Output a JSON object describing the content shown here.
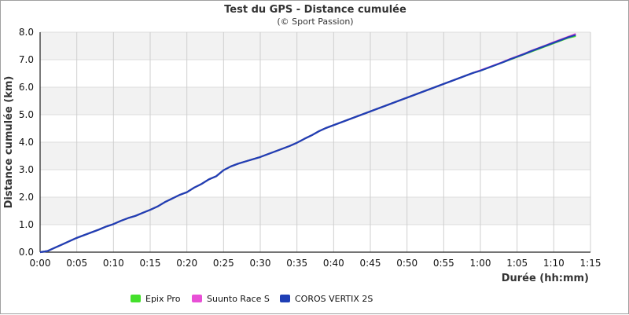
{
  "chart_data": {
    "type": "line",
    "title": "Test du GPS - Distance cumulée",
    "subtitle": "(© Sport Passion)",
    "xlabel": "Durée (hh:mm)",
    "ylabel": "Distance cumulée (km)",
    "x_unit": "minutes",
    "xlim": [
      0,
      75
    ],
    "ylim": [
      0,
      8
    ],
    "x_tick_labels": [
      "0:00",
      "0:05",
      "0:10",
      "0:15",
      "0:20",
      "0:25",
      "0:30",
      "0:35",
      "0:40",
      "0:45",
      "0:50",
      "0:55",
      "1:00",
      "1:05",
      "1:10",
      "1:15"
    ],
    "y_tick_labels": [
      "0.0",
      "1.0",
      "2.0",
      "3.0",
      "4.0",
      "5.0",
      "6.0",
      "7.0",
      "8.0"
    ],
    "grid": true,
    "legend_position": "bottom",
    "x": [
      0,
      1,
      2,
      3,
      4,
      5,
      6,
      7,
      8,
      9,
      10,
      11,
      12,
      13,
      14,
      15,
      16,
      17,
      18,
      19,
      20,
      21,
      22,
      23,
      24,
      25,
      26,
      27,
      28,
      29,
      30,
      31,
      32,
      33,
      34,
      35,
      36,
      37,
      38,
      39,
      40,
      41,
      42,
      43,
      44,
      45,
      46,
      47,
      48,
      49,
      50,
      51,
      52,
      53,
      54,
      55,
      56,
      57,
      58,
      59,
      60,
      61,
      62,
      63,
      64,
      65,
      66,
      67,
      68,
      69,
      70,
      71,
      72,
      73
    ],
    "series": [
      {
        "name": "Epix Pro",
        "color": "#44e02c",
        "values": [
          0.0,
          0.04,
          0.16,
          0.28,
          0.4,
          0.52,
          0.62,
          0.72,
          0.82,
          0.93,
          1.02,
          1.14,
          1.24,
          1.32,
          1.43,
          1.54,
          1.66,
          1.82,
          1.95,
          2.08,
          2.18,
          2.35,
          2.48,
          2.65,
          2.76,
          2.98,
          3.12,
          3.22,
          3.3,
          3.38,
          3.46,
          3.56,
          3.66,
          3.76,
          3.86,
          3.98,
          4.12,
          4.25,
          4.4,
          4.52,
          4.62,
          4.72,
          4.82,
          4.92,
          5.02,
          5.12,
          5.22,
          5.32,
          5.42,
          5.52,
          5.62,
          5.72,
          5.82,
          5.92,
          6.02,
          6.12,
          6.22,
          6.32,
          6.42,
          6.52,
          6.6,
          6.7,
          6.8,
          6.9,
          7.0,
          7.1,
          7.2,
          7.3,
          7.4,
          7.5,
          7.6,
          7.7,
          7.8,
          7.86
        ]
      },
      {
        "name": "Suunto Race S",
        "color": "#e84fd6",
        "values": [
          0.0,
          0.04,
          0.16,
          0.28,
          0.4,
          0.52,
          0.62,
          0.72,
          0.82,
          0.93,
          1.02,
          1.14,
          1.24,
          1.32,
          1.43,
          1.54,
          1.66,
          1.82,
          1.95,
          2.08,
          2.18,
          2.35,
          2.48,
          2.65,
          2.76,
          2.98,
          3.12,
          3.22,
          3.3,
          3.38,
          3.46,
          3.56,
          3.66,
          3.76,
          3.86,
          3.98,
          4.12,
          4.25,
          4.4,
          4.52,
          4.62,
          4.72,
          4.82,
          4.92,
          5.02,
          5.12,
          5.22,
          5.32,
          5.42,
          5.52,
          5.62,
          5.72,
          5.82,
          5.92,
          6.02,
          6.12,
          6.22,
          6.32,
          6.42,
          6.52,
          6.61,
          6.71,
          6.81,
          6.91,
          7.02,
          7.12,
          7.22,
          7.33,
          7.43,
          7.53,
          7.64,
          7.74,
          7.84,
          7.94
        ]
      },
      {
        "name": "COROS VERTIX 2S",
        "color": "#1f3fb5",
        "values": [
          0.0,
          0.04,
          0.16,
          0.28,
          0.4,
          0.52,
          0.62,
          0.72,
          0.82,
          0.93,
          1.02,
          1.14,
          1.24,
          1.32,
          1.43,
          1.54,
          1.66,
          1.82,
          1.95,
          2.08,
          2.18,
          2.35,
          2.48,
          2.65,
          2.76,
          2.98,
          3.12,
          3.22,
          3.3,
          3.38,
          3.46,
          3.56,
          3.66,
          3.76,
          3.86,
          3.98,
          4.12,
          4.25,
          4.4,
          4.52,
          4.62,
          4.72,
          4.82,
          4.92,
          5.02,
          5.12,
          5.22,
          5.32,
          5.42,
          5.52,
          5.62,
          5.72,
          5.82,
          5.92,
          6.02,
          6.12,
          6.22,
          6.32,
          6.42,
          6.52,
          6.6,
          6.7,
          6.8,
          6.9,
          7.01,
          7.11,
          7.21,
          7.32,
          7.42,
          7.52,
          7.62,
          7.72,
          7.82,
          7.9
        ]
      }
    ]
  }
}
